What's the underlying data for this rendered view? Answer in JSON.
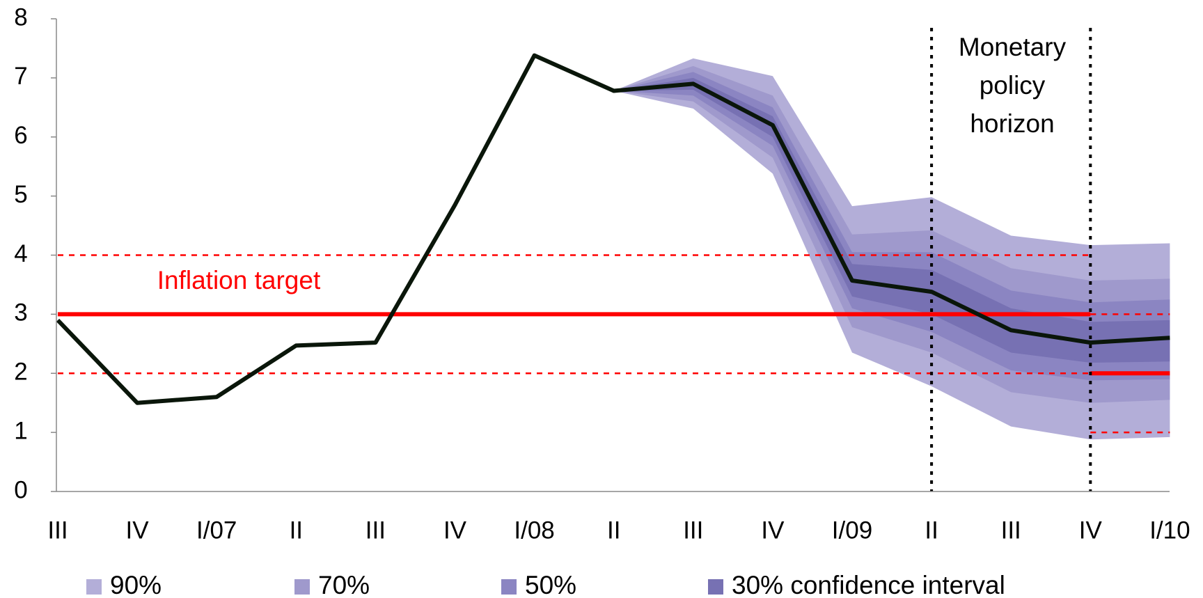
{
  "chart_data": {
    "type": "fan",
    "categories": [
      "III",
      "IV",
      "I/07",
      "II",
      "III",
      "IV",
      "I/08",
      "II",
      "III",
      "IV",
      "I/09",
      "II",
      "III",
      "IV",
      "I/10"
    ],
    "ylim": [
      0,
      8
    ],
    "yticks": [
      0,
      1,
      2,
      3,
      4,
      5,
      6,
      7,
      8
    ],
    "series": [
      {
        "color": "#0a160a",
        "values": [
          2.9,
          1.5,
          1.6,
          2.47,
          2.52,
          4.85,
          7.38,
          6.78,
          6.9,
          6.2,
          3.57,
          3.38,
          2.73,
          2.52,
          2.6
        ]
      }
    ],
    "fan": [
      {
        "name": "90%",
        "color": "#b3aed8",
        "lower": [
          null,
          null,
          null,
          null,
          null,
          null,
          null,
          6.78,
          6.48,
          5.38,
          2.35,
          1.78,
          1.1,
          0.88,
          0.92
        ],
        "upper": [
          null,
          null,
          null,
          null,
          null,
          null,
          null,
          6.78,
          7.33,
          7.03,
          4.83,
          4.98,
          4.33,
          4.17,
          4.2
        ]
      },
      {
        "name": "70%",
        "color": "#9f99cc",
        "lower": [
          null,
          null,
          null,
          null,
          null,
          null,
          null,
          6.78,
          6.6,
          5.65,
          2.78,
          2.35,
          1.68,
          1.5,
          1.55
        ],
        "upper": [
          null,
          null,
          null,
          null,
          null,
          null,
          null,
          6.78,
          7.2,
          6.7,
          4.35,
          4.42,
          3.78,
          3.57,
          3.6
        ]
      },
      {
        "name": "50%",
        "color": "#8b85c2",
        "lower": [
          null,
          null,
          null,
          null,
          null,
          null,
          null,
          6.78,
          6.7,
          5.85,
          3.1,
          2.7,
          2.05,
          1.88,
          1.9
        ],
        "upper": [
          null,
          null,
          null,
          null,
          null,
          null,
          null,
          6.78,
          7.1,
          6.5,
          4.05,
          4.05,
          3.4,
          3.2,
          3.25
        ]
      },
      {
        "name": "30% confidence interval",
        "color": "#7771b3",
        "lower": [
          null,
          null,
          null,
          null,
          null,
          null,
          null,
          6.78,
          6.8,
          6.0,
          3.3,
          3.0,
          2.35,
          2.18,
          2.2
        ],
        "upper": [
          null,
          null,
          null,
          null,
          null,
          null,
          null,
          6.78,
          7.0,
          6.35,
          3.85,
          3.75,
          3.1,
          2.87,
          2.9
        ]
      }
    ],
    "target_lines": [
      {
        "style": "solid",
        "color": "#ff0000",
        "values": [
          3,
          3,
          3,
          3,
          3,
          3,
          3,
          3,
          3,
          3,
          3,
          3,
          3,
          3,
          null
        ]
      },
      {
        "style": "dashed",
        "color": "#ff0000",
        "values": [
          4,
          4,
          4,
          4,
          4,
          4,
          4,
          4,
          4,
          4,
          4,
          4,
          4,
          4,
          null
        ]
      },
      {
        "style": "dashed",
        "color": "#ff0000",
        "values": [
          2,
          2,
          2,
          2,
          2,
          2,
          2,
          2,
          2,
          2,
          2,
          2,
          2,
          2,
          null
        ]
      },
      {
        "style": "solid",
        "color": "#ff0000",
        "values": [
          null,
          null,
          null,
          null,
          null,
          null,
          null,
          null,
          null,
          null,
          null,
          null,
          null,
          2,
          2
        ]
      },
      {
        "style": "dashed",
        "color": "#ff0000",
        "values": [
          null,
          null,
          null,
          null,
          null,
          null,
          null,
          null,
          null,
          null,
          null,
          null,
          null,
          3,
          3
        ]
      },
      {
        "style": "dashed",
        "color": "#ff0000",
        "values": [
          null,
          null,
          null,
          null,
          null,
          null,
          null,
          null,
          null,
          null,
          null,
          null,
          null,
          1,
          1
        ]
      }
    ],
    "annotations": {
      "target": "Inflation target",
      "horizon": [
        "Monetary",
        "policy",
        "horizon"
      ]
    }
  }
}
